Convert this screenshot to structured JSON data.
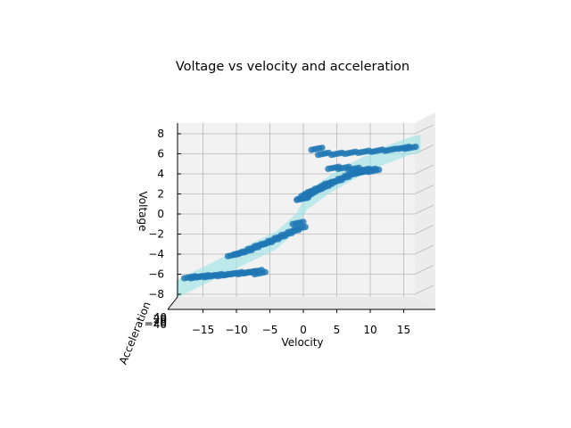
{
  "chart_data": {
    "type": "scatter",
    "title": "Voltage vs velocity and acceleration",
    "xlabel": "Velocity",
    "ylabel": "Voltage",
    "zlabel": "Acceleration",
    "xlim": [
      -19,
      19
    ],
    "ylim": [
      -8,
      8
    ],
    "x_ticks": [
      "−15",
      "−10",
      "−5",
      "0",
      "5",
      "10",
      "15"
    ],
    "y_ticks": [
      "8",
      "6",
      "4",
      "2",
      "0",
      "−2",
      "−4",
      "−6",
      "−8"
    ],
    "z_ticks": [
      "40",
      "20",
      "0",
      "−20",
      "−40"
    ],
    "grid": true,
    "colors": {
      "points": "#1f77b4",
      "surface": "#9be3e6",
      "pane": "#f2f2f2",
      "grid": "#b8b8b8"
    },
    "series": [
      {
        "kind": "points",
        "x": [
          -17.0,
          -16.0,
          -15.0,
          -14.0,
          -13.0,
          -12.0,
          -11.0,
          -10.0,
          -9.0,
          -8.0,
          -7.0,
          -6.5,
          -10.5,
          -9.5,
          -8.5,
          -7.5,
          -6.5,
          -5.5,
          -4.5,
          -3.5,
          -2.5,
          -1.5,
          -0.5,
          -0.8,
          -0.2,
          0.0,
          0.5,
          1.0,
          1.5,
          2.0,
          2.5,
          3.0,
          3.5,
          4.0,
          5.0,
          6.0,
          7.0,
          8.0,
          9.0,
          10.0,
          4.5,
          6.0,
          7.5,
          9.0,
          10.5,
          2.0,
          3.0,
          5.0,
          7.0,
          9.0,
          11.0,
          13.0,
          15.0,
          16.0
        ],
        "y": [
          -6.3,
          -6.3,
          -6.2,
          -6.2,
          -6.1,
          -6.1,
          -6.0,
          -5.9,
          -5.9,
          -5.8,
          -5.7,
          -5.9,
          -4.1,
          -3.9,
          -3.7,
          -3.4,
          -3.1,
          -2.9,
          -2.6,
          -2.3,
          -2.0,
          -1.7,
          -1.4,
          -0.9,
          1.5,
          1.6,
          1.9,
          2.1,
          2.3,
          2.4,
          2.6,
          2.7,
          2.9,
          3.1,
          3.3,
          3.6,
          3.9,
          4.1,
          4.2,
          4.4,
          4.6,
          4.6,
          4.5,
          4.4,
          4.3,
          6.5,
          6.0,
          6.0,
          6.1,
          6.2,
          6.3,
          6.4,
          6.6,
          6.6
        ]
      }
    ]
  }
}
